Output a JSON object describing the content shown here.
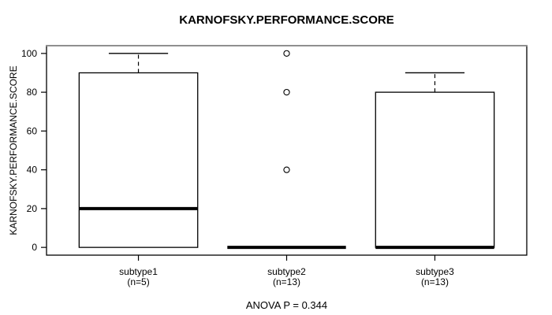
{
  "chart_data": {
    "type": "boxplot",
    "title": "KARNOFSKY.PERFORMANCE.SCORE",
    "ylabel": "KARNOFSKY.PERFORMANCE.SCORE",
    "xlabel": "",
    "annotation": "ANOVA P = 0.344",
    "ylim": [
      0,
      100
    ],
    "yticks": [
      0,
      20,
      40,
      60,
      80,
      100
    ],
    "grid": false,
    "legend": false,
    "groups": [
      {
        "label": "subtype1",
        "sublabel": "(n=5)",
        "whisker_low": 0,
        "q1": 0,
        "median": 20,
        "q3": 90,
        "whisker_high": 100,
        "outliers": []
      },
      {
        "label": "subtype2",
        "sublabel": "(n=13)",
        "whisker_low": 0,
        "q1": 0,
        "median": 0,
        "q3": 0,
        "whisker_high": 0,
        "outliers": [
          40,
          80,
          100
        ]
      },
      {
        "label": "subtype3",
        "sublabel": "(n=13)",
        "whisker_low": 0,
        "q1": 0,
        "median": 0,
        "q3": 80,
        "whisker_high": 90,
        "outliers": []
      }
    ],
    "colors": {
      "line": "#000000",
      "box_fill": "#ffffff",
      "background": "#ffffff",
      "border_highlight": "#8f8f8f"
    }
  }
}
